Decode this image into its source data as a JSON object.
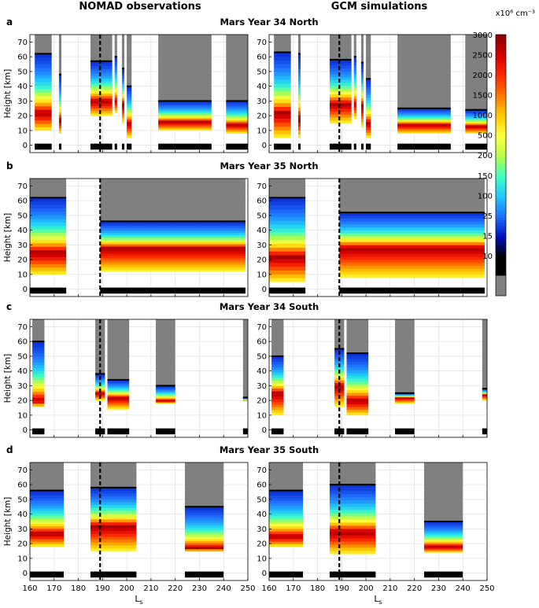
{
  "column_titles": [
    "NOMAD observations",
    "GCM simulations"
  ],
  "colorbar": {
    "unit_label": "x10⁶ cm⁻³",
    "tick_labels": [
      "3000",
      "2500",
      "2000",
      "1500",
      "1000",
      "500",
      "200",
      "150",
      "100",
      "25",
      "15",
      "10"
    ],
    "colors": [
      "#8b0000",
      "#d40000",
      "#ff2a00",
      "#ff7a00",
      "#ffcc00",
      "#ffff40",
      "#b4ff4a",
      "#40ffbf",
      "#20c8ff",
      "#2070ff",
      "#0010c0",
      "#000000",
      "#808080"
    ]
  },
  "chart_data": [
    {
      "type": "heatmap",
      "panel": "a",
      "title": "Mars Year 34 North",
      "column": "NOMAD observations",
      "xlabel": "Ls",
      "ylabel": "Height [km]",
      "xlim": [
        160,
        250
      ],
      "ylim": [
        -5,
        75
      ],
      "x_ticks": [
        160,
        170,
        180,
        190,
        200,
        210,
        220,
        230,
        240,
        250
      ],
      "y_ticks": [
        0,
        10,
        20,
        30,
        40,
        50,
        60,
        70
      ],
      "dashed_line_ls": 189
    },
    {
      "type": "heatmap",
      "panel": "a",
      "title": "Mars Year 34 North",
      "column": "GCM simulations",
      "xlabel": "Ls",
      "ylabel": "Height [km]",
      "xlim": [
        160,
        250
      ],
      "ylim": [
        -5,
        75
      ],
      "x_ticks": [
        160,
        170,
        180,
        190,
        200,
        210,
        220,
        230,
        240,
        250
      ],
      "y_ticks": [
        0,
        10,
        20,
        30,
        40,
        50,
        60,
        70
      ],
      "dashed_line_ls": 189
    },
    {
      "type": "heatmap",
      "panel": "b",
      "title": "Mars Year 35 North",
      "column": "NOMAD observations",
      "xlabel": "Ls",
      "ylabel": "Height [km]",
      "xlim": [
        160,
        250
      ],
      "ylim": [
        -5,
        75
      ],
      "x_ticks": [
        160,
        170,
        180,
        190,
        200,
        210,
        220,
        230,
        240,
        250
      ],
      "y_ticks": [
        0,
        10,
        20,
        30,
        40,
        50,
        60,
        70
      ],
      "dashed_line_ls": 189
    },
    {
      "type": "heatmap",
      "panel": "b",
      "title": "Mars Year 35 North",
      "column": "GCM simulations",
      "xlabel": "Ls",
      "ylabel": "Height [km]",
      "xlim": [
        160,
        250
      ],
      "ylim": [
        -5,
        75
      ],
      "x_ticks": [
        160,
        170,
        180,
        190,
        200,
        210,
        220,
        230,
        240,
        250
      ],
      "y_ticks": [
        0,
        10,
        20,
        30,
        40,
        50,
        60,
        70
      ],
      "dashed_line_ls": 189
    },
    {
      "type": "heatmap",
      "panel": "c",
      "title": "Mars Year 34 South",
      "column": "NOMAD observations",
      "xlabel": "Ls",
      "ylabel": "Height [km]",
      "xlim": [
        160,
        250
      ],
      "ylim": [
        -5,
        75
      ],
      "x_ticks": [
        160,
        170,
        180,
        190,
        200,
        210,
        220,
        230,
        240,
        250
      ],
      "y_ticks": [
        0,
        10,
        20,
        30,
        40,
        50,
        60,
        70
      ],
      "dashed_line_ls": 189
    },
    {
      "type": "heatmap",
      "panel": "c",
      "title": "Mars Year 34 South",
      "column": "GCM simulations",
      "xlabel": "Ls",
      "ylabel": "Height [km]",
      "xlim": [
        160,
        250
      ],
      "ylim": [
        -5,
        75
      ],
      "x_ticks": [
        160,
        170,
        180,
        190,
        200,
        210,
        220,
        230,
        240,
        250
      ],
      "y_ticks": [
        0,
        10,
        20,
        30,
        40,
        50,
        60,
        70
      ],
      "dashed_line_ls": 189
    },
    {
      "type": "heatmap",
      "panel": "d",
      "title": "Mars Year 35 South",
      "column": "NOMAD observations",
      "xlabel": "Ls",
      "ylabel": "Height [km]",
      "xlim": [
        160,
        250
      ],
      "ylim": [
        -5,
        75
      ],
      "x_ticks": [
        160,
        170,
        180,
        190,
        200,
        210,
        220,
        230,
        240,
        250
      ],
      "y_ticks": [
        0,
        10,
        20,
        30,
        40,
        50,
        60,
        70
      ],
      "dashed_line_ls": 189
    },
    {
      "type": "heatmap",
      "panel": "d",
      "title": "Mars Year 35 South",
      "column": "GCM simulations",
      "xlabel": "Ls",
      "ylabel": "Height [km]",
      "xlim": [
        160,
        250
      ],
      "ylim": [
        -5,
        75
      ],
      "x_ticks": [
        160,
        170,
        180,
        190,
        200,
        210,
        220,
        230,
        240,
        250
      ],
      "y_ticks": [
        0,
        10,
        20,
        30,
        40,
        50,
        60,
        70
      ],
      "dashed_line_ls": 189
    }
  ],
  "coverage": {
    "a": {
      "segments": [
        [
          162,
          169
        ],
        [
          172,
          173
        ],
        [
          185,
          194
        ],
        [
          195,
          196
        ],
        [
          198,
          199
        ],
        [
          200,
          202
        ],
        [
          213,
          235
        ],
        [
          241,
          250
        ]
      ],
      "obs": {
        "low": [
          10,
          8,
          20,
          22,
          15,
          5,
          10,
          8
        ],
        "top": [
          62,
          48,
          57,
          60,
          52,
          40,
          30,
          30
        ],
        "peak": [
          22,
          17,
          30,
          30,
          28,
          15,
          16,
          14
        ]
      },
      "gcm": {
        "low": [
          5,
          5,
          15,
          18,
          12,
          5,
          8,
          8
        ],
        "top": [
          63,
          62,
          58,
          60,
          56,
          45,
          25,
          24
        ],
        "peak": [
          22,
          18,
          28,
          28,
          27,
          15,
          14,
          13
        ]
      }
    },
    "b": {
      "segments": [
        [
          160,
          175
        ],
        [
          189,
          249
        ]
      ],
      "obs": {
        "low": [
          10,
          12
        ],
        "top": [
          62,
          46
        ],
        "peak": [
          25,
          28
        ]
      },
      "gcm": {
        "low": [
          5,
          8
        ],
        "top": [
          62,
          52
        ],
        "peak": [
          22,
          28
        ]
      }
    },
    "c": {
      "segments": [
        [
          161,
          166
        ],
        [
          187,
          191
        ],
        [
          192,
          201
        ],
        [
          212,
          220
        ],
        [
          248,
          250
        ]
      ],
      "obs": {
        "low": [
          16,
          20,
          14,
          18,
          20
        ],
        "top": [
          60,
          38,
          34,
          30,
          22
        ],
        "peak": [
          20,
          25,
          22,
          20,
          20
        ]
      },
      "gcm": {
        "low": [
          10,
          16,
          10,
          18,
          20
        ],
        "top": [
          50,
          55,
          52,
          25,
          28
        ],
        "peak": [
          25,
          30,
          20,
          22,
          24
        ]
      }
    },
    "d": {
      "segments": [
        [
          160,
          174
        ],
        [
          185,
          204
        ],
        [
          224,
          240
        ]
      ],
      "obs": {
        "low": [
          18,
          15,
          15
        ],
        "top": [
          56,
          58,
          45
        ],
        "peak": [
          27,
          32,
          17
        ]
      },
      "gcm": {
        "low": [
          18,
          13,
          14
        ],
        "top": [
          56,
          60,
          35
        ],
        "peak": [
          25,
          28,
          18
        ]
      }
    }
  },
  "panel_letters": [
    "a",
    "b",
    "c",
    "d"
  ]
}
